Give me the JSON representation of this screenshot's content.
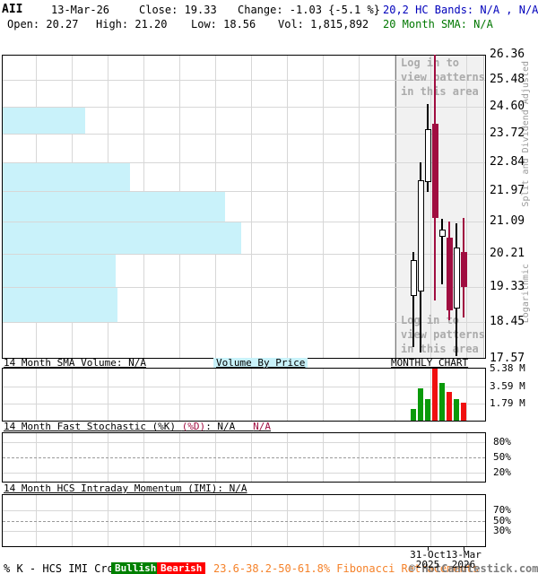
{
  "header": {
    "ticker": "AII",
    "date": "13-Mar-26",
    "close": "Close: 19.33",
    "change": "Change: -1.03 {-5.1 %}",
    "hc_bands": "20,2 HC Bands: N/A , N/A",
    "open": "Open: 20.27",
    "high": "High: 21.20",
    "low": "Low: 18.56",
    "volume": "Vol: 1,815,892",
    "sma": "20 Month SMA: N/A"
  },
  "main_chart": {
    "overlay_text": [
      "Log in to",
      "view patterns",
      "in this area"
    ],
    "right_label_top": "Split and Dividend Adjusted",
    "right_label_bottom": "Logarithmic"
  },
  "volume_panel": {
    "sma_label": "14 Month SMA Volume: N/A",
    "vbp_label": "Volume By Price",
    "type_label": "MONTHLY CHART"
  },
  "stoch_panel": {
    "label_main": "14 Month Fast Stochastic (%K) ",
    "label_d": "(%D)",
    "label_value": ": N/A   ",
    "label_d_value": "N/A",
    "ticks": [
      "80%",
      "50%",
      "20%"
    ]
  },
  "imi_panel": {
    "label": "14 Month HCS Intraday Momentum (IMI): N/A",
    "ticks": [
      "70%",
      "50%",
      "30%"
    ]
  },
  "xaxis": {
    "labels": [
      {
        "line1": "31-Oct",
        "line2": "2025",
        "candle_index": 2
      },
      {
        "line1": "13-Mar",
        "line2": "2026",
        "candle_index": 7
      }
    ]
  },
  "footer": {
    "crossover": "% K - HCS IMI Crossover,",
    "bullish": "Bullish",
    "bearish": "Bearish",
    "fibonacci": "23.6-38.2-50-61.8% Fibonacci Retracements",
    "copyright": "© HotCandlestick.com"
  },
  "colors": {
    "down": "#a00d40",
    "up": "#ffffff",
    "vol_up": "#0a9a0a",
    "vol_down": "#f01010",
    "vbp": "#c9f2fa",
    "grid": "#d7d7d7",
    "dashed": "#9a9a9a",
    "badge_green": "#008000",
    "badge_red": "#ff0000"
  },
  "chart_data": {
    "type": "candlestick",
    "timeframe": "monthly",
    "title": "AII monthly candlestick chart",
    "price_axis": {
      "scale": "logarithmic",
      "note": "Split and Dividend Adjusted",
      "ticks": [
        26.36,
        25.48,
        24.6,
        23.72,
        22.84,
        21.97,
        21.09,
        20.21,
        19.33,
        18.45,
        17.57
      ]
    },
    "volume_axis": {
      "unit": "M",
      "ticks": [
        5.38,
        3.59,
        1.79
      ]
    },
    "candles": [
      {
        "open": 19.1,
        "high": 20.27,
        "low": 17.85,
        "close": 20.03,
        "volume": 1.2,
        "dir": "up"
      },
      {
        "open": 19.21,
        "high": 22.83,
        "low": 17.72,
        "close": 22.29,
        "volume": 3.3,
        "dir": "up"
      },
      {
        "open": 22.24,
        "high": 24.67,
        "low": 21.95,
        "close": 23.86,
        "volume": 2.2,
        "dir": "up"
      },
      {
        "open": 24.03,
        "high": 26.36,
        "low": 18.99,
        "close": 21.2,
        "volume": 5.3,
        "dir": "down"
      },
      {
        "open": 20.68,
        "high": 21.18,
        "low": 19.4,
        "close": 20.88,
        "volume": 3.8,
        "dir": "up"
      },
      {
        "open": 20.66,
        "high": 21.1,
        "low": 18.49,
        "close": 18.74,
        "volume": 2.9,
        "dir": "down"
      },
      {
        "open": 18.78,
        "high": 21.05,
        "low": 17.63,
        "close": 20.37,
        "volume": 2.2,
        "dir": "up"
      },
      {
        "open": 20.27,
        "high": 21.2,
        "low": 18.56,
        "close": 19.33,
        "volume": 1.8,
        "dir": "down"
      }
    ],
    "volume_by_price": [
      {
        "high": 24.6,
        "low": 23.72,
        "frac": 0.17
      },
      {
        "high": 22.84,
        "low": 21.97,
        "frac": 0.263
      },
      {
        "high": 21.97,
        "low": 21.09,
        "frac": 0.459
      },
      {
        "high": 21.09,
        "low": 20.21,
        "frac": 0.493
      },
      {
        "high": 20.21,
        "low": 19.33,
        "frac": 0.233
      },
      {
        "high": 19.33,
        "low": 18.45,
        "frac": 0.237
      }
    ],
    "stochastic_value": "N/A",
    "imi_value": "N/A"
  }
}
